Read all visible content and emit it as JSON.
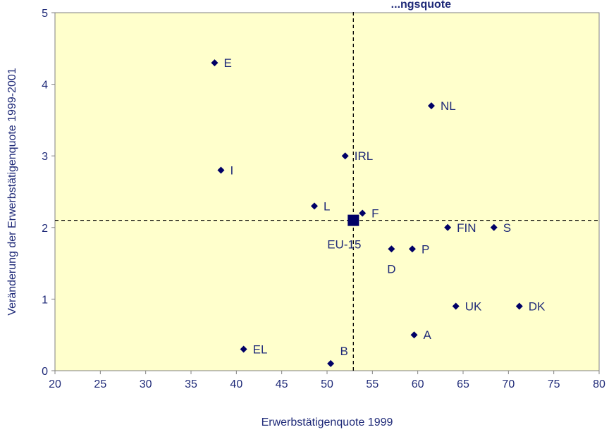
{
  "chart_data": {
    "type": "scatter",
    "title_partial": "...ngsquote",
    "xlabel": "Erwerbstätigenquote 1999",
    "ylabel": "Veränderung der Erwerbstätigenquote 1999-2001",
    "xlim": [
      20,
      80
    ],
    "ylim": [
      0,
      5
    ],
    "xticks": [
      20,
      25,
      30,
      35,
      40,
      45,
      50,
      55,
      60,
      65,
      70,
      75,
      80
    ],
    "yticks": [
      0,
      1,
      2,
      3,
      4,
      5
    ],
    "grid": false,
    "background_color": "#ffffcc",
    "marker_color": "#000066",
    "reference_lines": {
      "x": 52.9,
      "y": 2.1,
      "style": "dashed"
    },
    "points": [
      {
        "label": "E",
        "x": 37.6,
        "y": 4.3,
        "label_pos": "right"
      },
      {
        "label": "NL",
        "x": 61.5,
        "y": 3.7,
        "label_pos": "right"
      },
      {
        "label": "IRL",
        "x": 52.0,
        "y": 3.0,
        "label_pos": "right"
      },
      {
        "label": "I",
        "x": 38.3,
        "y": 2.8,
        "label_pos": "right"
      },
      {
        "label": "L",
        "x": 48.6,
        "y": 2.3,
        "label_pos": "right"
      },
      {
        "label": "F",
        "x": 53.9,
        "y": 2.2,
        "label_pos": "right"
      },
      {
        "label": "FIN",
        "x": 63.3,
        "y": 2.0,
        "label_pos": "right"
      },
      {
        "label": "S",
        "x": 68.4,
        "y": 2.0,
        "label_pos": "right"
      },
      {
        "label": "D",
        "x": 57.1,
        "y": 1.7,
        "label_pos": "below"
      },
      {
        "label": "P",
        "x": 59.4,
        "y": 1.7,
        "label_pos": "right"
      },
      {
        "label": "UK",
        "x": 64.2,
        "y": 0.9,
        "label_pos": "right"
      },
      {
        "label": "DK",
        "x": 71.2,
        "y": 0.9,
        "label_pos": "right"
      },
      {
        "label": "A",
        "x": 59.6,
        "y": 0.5,
        "label_pos": "right"
      },
      {
        "label": "EL",
        "x": 40.8,
        "y": 0.3,
        "label_pos": "right"
      },
      {
        "label": "B",
        "x": 50.4,
        "y": 0.1,
        "label_pos": "above"
      }
    ],
    "highlight_point": {
      "label": "EU-15",
      "x": 52.9,
      "y": 2.1,
      "label_pos": "below-left"
    }
  }
}
